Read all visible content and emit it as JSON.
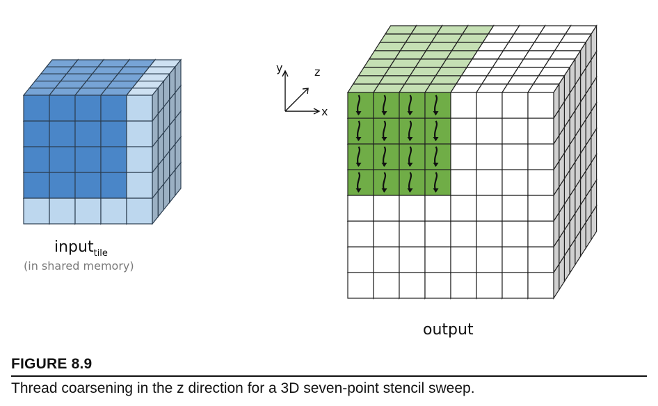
{
  "figure": {
    "label": "FIGURE 8.9",
    "caption": "Thread coarsening in the z direction for a 3D seven-point stencil sweep."
  },
  "left_block": {
    "label_main": "input",
    "label_sub": "tile",
    "note": "(in shared memory)",
    "grid": [
      5,
      5,
      5
    ],
    "highlight_cols": 4,
    "highlight_rows": 4,
    "colors": {
      "highlight": "#4a86c8",
      "base": "#bdd7ee",
      "stroke": "#2c3e50"
    }
  },
  "right_block": {
    "label": "output",
    "grid": [
      8,
      8,
      8
    ],
    "highlight_cols": 4,
    "highlight_rows": 4,
    "colors": {
      "highlight": "#70ad47",
      "highlight_top": "#c5e0b4",
      "base": "#ffffff",
      "stroke": "#222222"
    }
  },
  "axes": {
    "x": "x",
    "y": "y",
    "z": "z"
  }
}
